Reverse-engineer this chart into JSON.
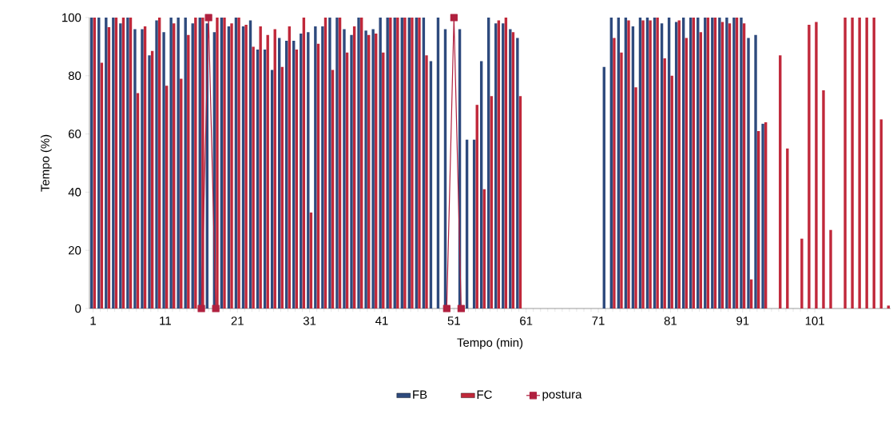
{
  "chart_data": {
    "type": "bar",
    "xlabel": "Tempo (min)",
    "ylabel": "Tempo (%)",
    "categories": [
      "1",
      null,
      null,
      null,
      null,
      null,
      null,
      null,
      null,
      null,
      "11",
      null,
      null,
      null,
      null,
      null,
      null,
      null,
      null,
      null,
      "21",
      null,
      null,
      null,
      null,
      null,
      null,
      null,
      null,
      null,
      "31",
      null,
      null,
      null,
      null,
      null,
      null,
      null,
      null,
      null,
      "41",
      null,
      null,
      null,
      null,
      null,
      null,
      null,
      null,
      null,
      "51",
      null,
      null,
      null,
      null,
      null,
      null,
      null,
      null,
      null,
      "61",
      null,
      null,
      null,
      null,
      null,
      null,
      null,
      null,
      null,
      "71",
      null,
      null,
      null,
      null,
      null,
      null,
      null,
      null,
      null,
      "81",
      null,
      null,
      null,
      null,
      null,
      null,
      null,
      null,
      null,
      "91",
      null,
      null,
      null,
      null,
      null,
      null,
      null,
      null,
      null,
      "101",
      null,
      null,
      null,
      null,
      null,
      null,
      null,
      null,
      null,
      null
    ],
    "ylim": [
      0,
      100
    ],
    "yticks": [
      0,
      20,
      40,
      60,
      80,
      100
    ],
    "legend": "bottom",
    "marker": "square",
    "series": [
      {
        "name": "FB",
        "type": "bar",
        "color": "#2e4a7d",
        "values": [
          100,
          100,
          100,
          100,
          98,
          100,
          96,
          96,
          87,
          99,
          95,
          100,
          100,
          100,
          98,
          100,
          98,
          95,
          100,
          97,
          100,
          97,
          99,
          89,
          89,
          82,
          93,
          92,
          92,
          94.5,
          95,
          97,
          97,
          100,
          100,
          96,
          94,
          100,
          95.5,
          96,
          100,
          100,
          100,
          100,
          100,
          100,
          100,
          85,
          100,
          96,
          null,
          96,
          58,
          58,
          85,
          100,
          98,
          98,
          96,
          93,
          0,
          0,
          0,
          0,
          0,
          0,
          0,
          0,
          0,
          0,
          0,
          83,
          100,
          100,
          100,
          97,
          100,
          100,
          100,
          98,
          100,
          98.5,
          100,
          100,
          100,
          100,
          100,
          100,
          100,
          100,
          100,
          93,
          94,
          63.5,
          0,
          0,
          0,
          0,
          0,
          0,
          0,
          0,
          0,
          0,
          0,
          0,
          0,
          0,
          0,
          0,
          0
        ]
      },
      {
        "name": "FC",
        "type": "bar",
        "color": "#c0283a",
        "values": [
          100,
          84.5,
          96.7,
          100,
          100,
          100,
          74,
          97,
          88.5,
          100,
          76.6,
          98,
          79,
          94,
          100,
          100,
          null,
          100,
          100,
          98,
          100,
          97.5,
          90,
          97,
          94,
          96,
          83,
          97,
          89,
          100,
          33,
          91,
          100,
          82,
          100,
          88,
          97,
          100,
          94,
          94.5,
          88,
          100,
          100,
          100,
          100,
          100,
          87,
          0,
          0,
          0,
          0,
          0,
          0,
          70,
          41,
          73,
          99,
          100,
          95,
          73,
          0,
          0,
          0,
          0,
          0,
          0,
          0,
          0,
          0,
          0,
          0,
          0,
          93,
          88,
          99,
          76,
          99,
          99,
          100,
          86,
          80,
          99,
          93,
          100,
          95,
          100,
          100,
          98.5,
          98,
          100,
          98,
          10,
          61,
          64,
          0,
          87,
          55,
          0,
          24,
          97.5,
          98.5,
          75,
          27,
          0,
          100,
          100,
          100,
          100,
          100,
          65,
          1
        ]
      },
      {
        "name": "postura",
        "type": "line",
        "color": "#b0203f",
        "values": [
          null,
          null,
          null,
          null,
          null,
          null,
          null,
          null,
          null,
          null,
          null,
          null,
          null,
          null,
          null,
          0,
          100,
          0,
          null,
          null,
          null,
          null,
          null,
          null,
          null,
          null,
          null,
          null,
          null,
          null,
          null,
          null,
          null,
          null,
          null,
          null,
          null,
          null,
          null,
          null,
          null,
          null,
          null,
          null,
          null,
          null,
          null,
          null,
          null,
          0,
          100,
          0,
          null,
          null,
          null,
          null,
          null,
          null,
          null,
          null,
          null,
          null,
          null,
          null,
          null,
          null,
          null,
          null,
          null,
          null,
          null,
          null,
          null,
          null,
          null,
          null,
          null,
          null,
          null,
          null,
          null,
          null,
          null,
          null,
          null,
          null,
          null,
          null,
          null,
          null,
          null,
          null,
          null,
          null,
          null,
          null,
          null,
          null,
          null,
          null,
          null,
          null,
          null,
          null,
          null,
          null,
          null,
          null,
          null,
          null,
          null
        ]
      }
    ]
  }
}
